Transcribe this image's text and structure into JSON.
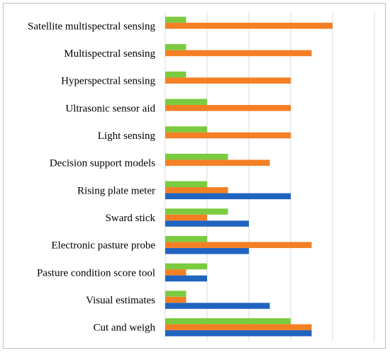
{
  "chart_data": {
    "type": "bar",
    "orientation": "horizontal",
    "categories": [
      "Satellite multispectral sensing",
      "Multispectral sensing",
      "Hyperspectral sensing",
      "Ultrasonic sensor aid",
      "Light sensing",
      "Decision support models",
      "Rising plate meter",
      "Sward stick",
      "Electronic pasture probe",
      "Pasture condition score tool",
      "Visual estimates",
      "Cut and weigh"
    ],
    "series": [
      {
        "color": "#7acb3f",
        "values": [
          1,
          1,
          1,
          2,
          2,
          3,
          2,
          3,
          2,
          2,
          1,
          6
        ]
      },
      {
        "color": "#f47f24",
        "values": [
          8,
          7,
          6,
          6,
          6,
          5,
          3,
          2,
          7,
          1,
          1,
          7
        ]
      },
      {
        "color": "#2064c0",
        "values": [
          0,
          0,
          0,
          0,
          0,
          0,
          6,
          4,
          4,
          2,
          5,
          7
        ]
      }
    ],
    "xlim": [
      0,
      10
    ],
    "grid": true,
    "legend": "none"
  }
}
